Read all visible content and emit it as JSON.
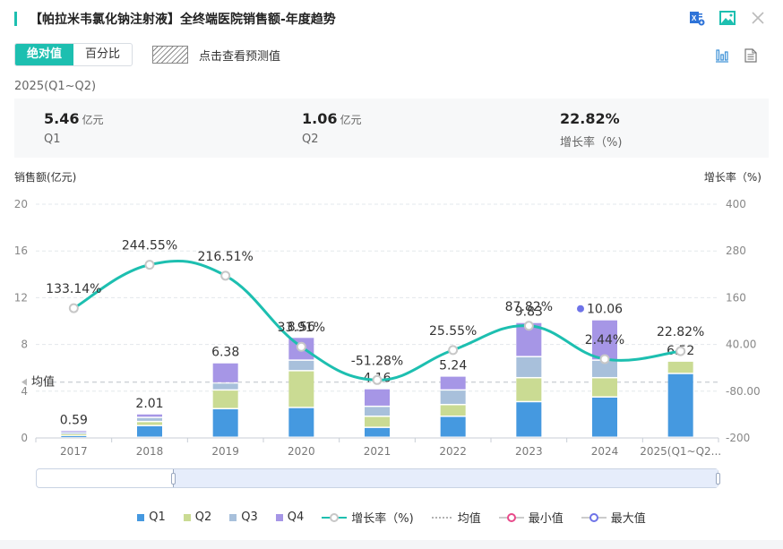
{
  "header": {
    "title": "【帕拉米韦氯化钠注射液】全终端医院销售额-年度趋势",
    "icons": [
      "excel-export-icon",
      "image-export-icon",
      "close-icon"
    ]
  },
  "toolbar": {
    "tabs": [
      {
        "label": "绝对值",
        "active": true
      },
      {
        "label": "百分比",
        "active": false
      }
    ],
    "prediction_label": "点击查看预测值",
    "view_icons": [
      "bar-chart-icon",
      "document-icon"
    ]
  },
  "period": "2025(Q1~Q2)",
  "summary": [
    {
      "value": "5.46",
      "unit": "亿元",
      "label": "Q1"
    },
    {
      "value": "1.06",
      "unit": "亿元",
      "label": "Q2"
    },
    {
      "value": "22.82%",
      "unit": "",
      "label": "增长率（%)"
    }
  ],
  "colors": {
    "accent": "#1dbfb0",
    "q1": "#4599e0",
    "q2": "#cadb93",
    "q3": "#a8c0db",
    "q4": "#a696e6",
    "line": "#1dbfb0",
    "min": "#e84a8a",
    "max": "#6e73e8"
  },
  "chart_data": {
    "type": "bar",
    "title": "",
    "ylabel": "销售额(亿元)",
    "y2label": "增长率（%)",
    "categories": [
      "2017",
      "2018",
      "2019",
      "2020",
      "2021",
      "2022",
      "2023",
      "2024",
      "2025(Q1~Q2..."
    ],
    "ylim": [
      0,
      20
    ],
    "yticks": [
      "0",
      "4",
      "8",
      "12",
      "16",
      "20"
    ],
    "y2lim": [
      -200,
      400
    ],
    "y2ticks": [
      "-200",
      "-80.00",
      "40.00",
      "160",
      "280",
      "400"
    ],
    "series": [
      {
        "name": "Q1",
        "values": [
          0.15,
          1.0,
          2.45,
          2.55,
          0.85,
          1.8,
          3.05,
          3.45,
          5.46
        ]
      },
      {
        "name": "Q2",
        "values": [
          0.15,
          0.35,
          1.6,
          3.15,
          0.95,
          1.0,
          2.05,
          1.65,
          1.06
        ]
      },
      {
        "name": "Q3",
        "values": [
          0.14,
          0.35,
          0.6,
          0.9,
          0.85,
          1.25,
          1.8,
          1.5,
          0
        ]
      },
      {
        "name": "Q4",
        "values": [
          0.15,
          0.31,
          1.73,
          1.96,
          1.51,
          1.19,
          2.93,
          3.46,
          0
        ]
      }
    ],
    "totals": [
      0.59,
      2.01,
      6.38,
      8.56,
      4.16,
      5.24,
      9.83,
      10.06,
      6.52
    ],
    "total_labels": [
      "0.59",
      "2.01",
      "6.38",
      "8.56",
      "4.16",
      "5.24",
      "9.83",
      "10.06",
      "6.52"
    ],
    "growth": {
      "name": "增长率（%)",
      "values": [
        133.14,
        244.55,
        216.51,
        33.91,
        -51.28,
        25.55,
        87.82,
        2.44,
        22.82
      ]
    },
    "growth_labels": [
      "133.14%",
      "244.55%",
      "216.51%",
      "33.91%",
      "-51.28%",
      "25.55%",
      "87.82%",
      "2.44%",
      "22.82%"
    ],
    "average": {
      "label": "均值",
      "value": 4.78
    },
    "max_marker_index": 7,
    "grid": true,
    "legend": {
      "position": "bottom",
      "items": [
        "Q1",
        "Q2",
        "Q3",
        "Q4",
        "增长率（%)",
        "均值",
        "最小值",
        "最大值"
      ]
    }
  },
  "zoom_slider": {
    "start_percent": 20,
    "end_percent": 100
  }
}
